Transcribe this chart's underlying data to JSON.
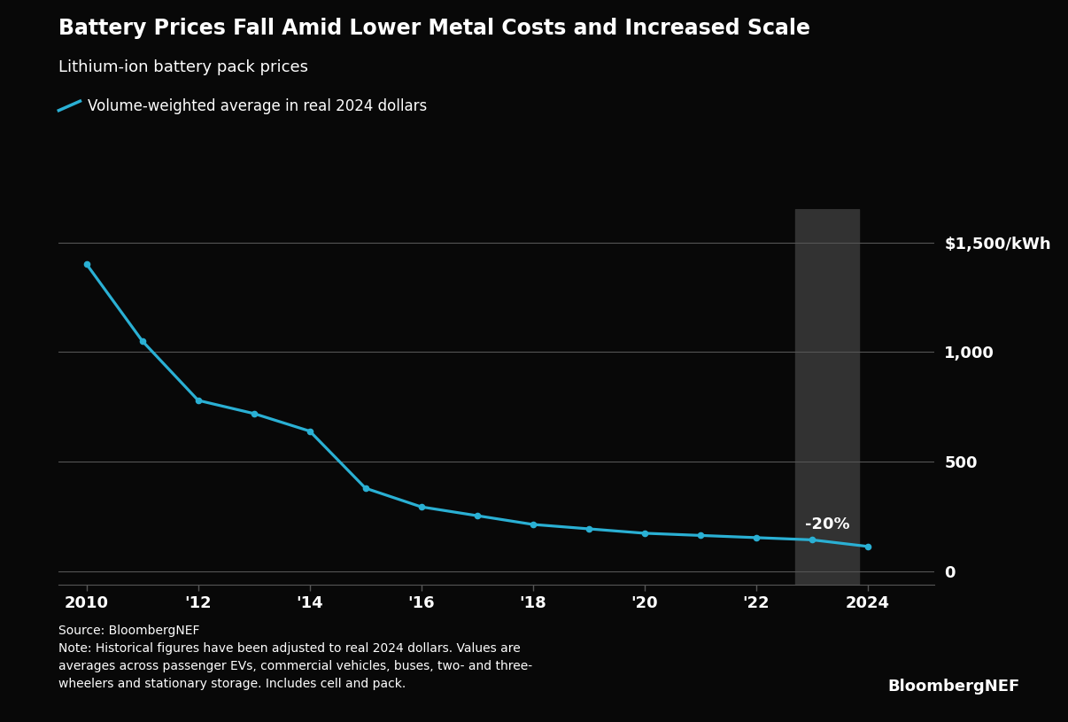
{
  "title": "Battery Prices Fall Amid Lower Metal Costs and Increased Scale",
  "subtitle": "Lithium-ion battery pack prices",
  "legend_label": "Volume-weighted average in real 2024 dollars",
  "source": "Source: BloombergNEF",
  "note": "Note: Historical figures have been adjusted to real 2024 dollars. Values are\naverages across passenger EVs, commercial vehicles, buses, two- and three-\nwheelers and stationary storage. Includes cell and pack.",
  "brand": "BloombergNEF",
  "background_color": "#080808",
  "line_color": "#2ab0d4",
  "annotation_text": "-20%",
  "shade_xmin": 2022.7,
  "shade_xmax": 2023.85,
  "years": [
    2010,
    2011,
    2012,
    2013,
    2014,
    2015,
    2016,
    2017,
    2018,
    2019,
    2020,
    2021,
    2022,
    2023,
    2024
  ],
  "values": [
    1400,
    1050,
    780,
    720,
    640,
    380,
    295,
    255,
    215,
    195,
    175,
    165,
    155,
    145,
    115
  ],
  "xlim": [
    2009.5,
    2025.2
  ],
  "ylim": [
    -60,
    1650
  ],
  "yticks": [
    0,
    500,
    1000,
    1500
  ],
  "xtick_positions": [
    2010,
    2012,
    2014,
    2016,
    2018,
    2020,
    2022,
    2024
  ],
  "xtick_labels": [
    "2010",
    "'12",
    "'14",
    "'16",
    "'18",
    "'20",
    "'22",
    "2024"
  ],
  "grid_color": "#555555",
  "shade_color": "#323232",
  "text_color": "#ffffff"
}
